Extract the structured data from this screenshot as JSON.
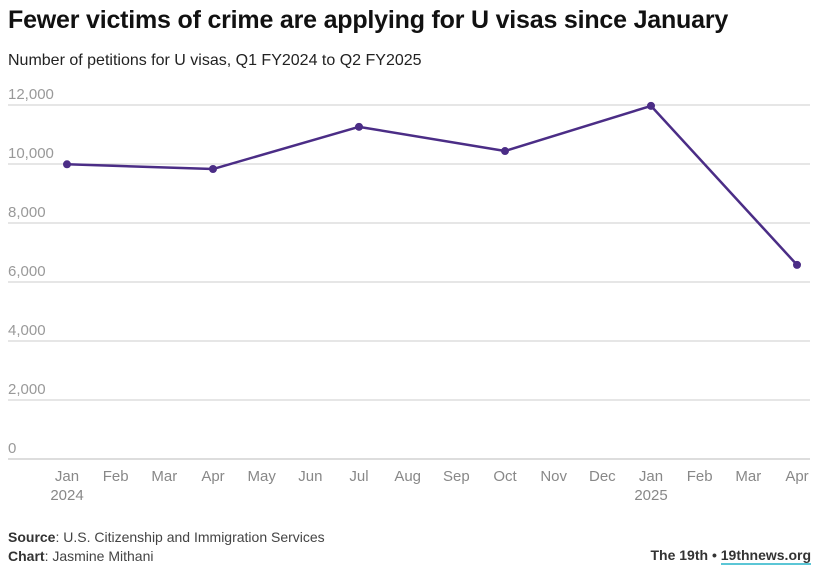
{
  "chart_data": {
    "type": "line",
    "title": "Fewer victims of crime are applying for U visas since January",
    "subtitle": "Number of petitions for U visas, Q1 FY2024 to Q2 FY2025",
    "x": [
      "2024-01",
      "2024-04",
      "2024-07",
      "2024-10",
      "2025-01",
      "2025-04"
    ],
    "series": [
      {
        "values": [
          9990,
          9830,
          11260,
          10440,
          11970,
          6580
        ],
        "color": "#4b2d86"
      }
    ],
    "ylim": [
      0,
      12000
    ],
    "yticks": [
      0,
      2000,
      4000,
      6000,
      8000,
      10000,
      12000
    ],
    "ytick_labels": [
      "0",
      "2,000",
      "4,000",
      "6,000",
      "8,000",
      "10,000",
      "12,000"
    ],
    "xlim": [
      "2024-01",
      "2025-04"
    ],
    "xtick_labels": [
      "Jan",
      "Feb",
      "Mar",
      "Apr",
      "May",
      "Jun",
      "Jul",
      "Aug",
      "Sep",
      "Oct",
      "Nov",
      "Dec",
      "Jan",
      "Feb",
      "Mar",
      "Apr"
    ],
    "xtick_years": {
      "0": "2024",
      "12": "2025"
    },
    "grid": true,
    "gridline_color": "#cccccc"
  },
  "footer": {
    "source_label": "Source",
    "source": ": U.S. Citizenship and Immigration Services",
    "chart_label": "Chart",
    "chart": ": Jasmine Mithani",
    "publisher": "The 19th",
    "separator": "•",
    "site": "19thnews.org"
  }
}
